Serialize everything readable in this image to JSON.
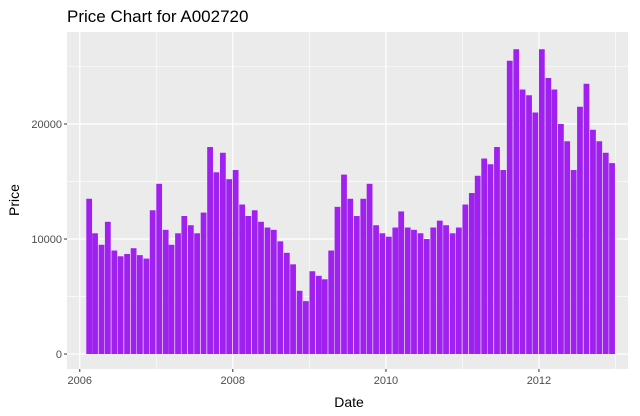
{
  "chart_data": {
    "type": "bar",
    "title": "Price Chart for A002720",
    "xlabel": "Date",
    "ylabel": "Price",
    "xlim": [
      "2005-11-01",
      "2013-03-01"
    ],
    "ylim": [
      -1300,
      28000
    ],
    "x_ticks": [
      {
        "value": "2006-01-01",
        "label": "2006"
      },
      {
        "value": "2008-01-01",
        "label": "2008"
      },
      {
        "value": "2010-01-01",
        "label": "2010"
      },
      {
        "value": "2012-01-01",
        "label": "2012"
      }
    ],
    "y_ticks": [
      {
        "value": 0,
        "label": "0"
      },
      {
        "value": 10000,
        "label": "10000"
      },
      {
        "value": 20000,
        "label": "20000"
      }
    ],
    "grid": true,
    "bar_color": "#A020F0",
    "panel_color": "#EBEBEB",
    "series": [
      {
        "x": [
          "2006-02",
          "2006-03",
          "2006-04",
          "2006-05",
          "2006-06",
          "2006-07",
          "2006-08",
          "2006-09",
          "2006-10",
          "2006-11",
          "2006-12",
          "2007-01",
          "2007-02",
          "2007-03",
          "2007-04",
          "2007-05",
          "2007-06",
          "2007-07",
          "2007-08",
          "2007-09",
          "2007-10",
          "2007-11",
          "2007-12",
          "2008-01",
          "2008-02",
          "2008-03",
          "2008-04",
          "2008-05",
          "2008-06",
          "2008-07",
          "2008-08",
          "2008-09",
          "2008-10",
          "2008-11",
          "2008-12",
          "2009-01",
          "2009-02",
          "2009-03",
          "2009-04",
          "2009-05",
          "2009-06",
          "2009-07",
          "2009-08",
          "2009-09",
          "2009-10",
          "2009-11",
          "2009-12",
          "2010-01",
          "2010-02",
          "2010-03",
          "2010-04",
          "2010-05",
          "2010-06",
          "2010-07",
          "2010-08",
          "2010-09",
          "2010-10",
          "2010-11",
          "2010-12",
          "2011-01",
          "2011-02",
          "2011-03",
          "2011-04",
          "2011-05",
          "2011-06",
          "2011-07",
          "2011-08",
          "2011-09",
          "2011-10",
          "2011-11",
          "2011-12",
          "2012-01",
          "2012-02",
          "2012-03",
          "2012-04",
          "2012-05",
          "2012-06",
          "2012-07",
          "2012-08",
          "2012-09",
          "2012-10",
          "2012-11",
          "2012-12"
        ],
        "values": [
          13500,
          10500,
          9500,
          11500,
          9000,
          8500,
          8700,
          9200,
          8600,
          8300,
          12500,
          14800,
          10800,
          9500,
          10500,
          12000,
          11200,
          10500,
          12300,
          18000,
          15800,
          17500,
          15200,
          16000,
          13000,
          12000,
          12500,
          11500,
          11000,
          10800,
          9800,
          8800,
          7800,
          5500,
          4600,
          7200,
          6800,
          6500,
          9000,
          12800,
          15600,
          13500,
          12000,
          13500,
          14800,
          11200,
          10500,
          10200,
          11000,
          12400,
          11000,
          10800,
          10500,
          10000,
          11000,
          11600,
          11200,
          10500,
          11000,
          13000,
          14000,
          15500,
          17000,
          16500,
          18000,
          16000,
          25500,
          26500,
          23000,
          22500,
          21000,
          26500,
          24000,
          23000,
          20000,
          18500,
          16000,
          21500,
          23500,
          19500,
          18500,
          17500,
          16600
        ]
      }
    ]
  }
}
